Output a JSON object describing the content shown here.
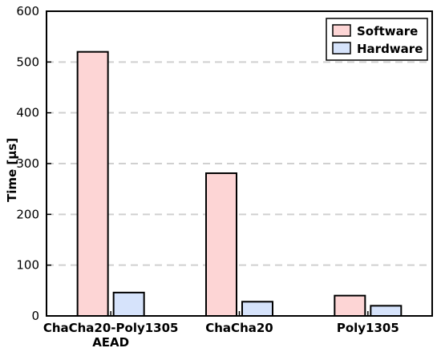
{
  "chart_data": {
    "type": "bar",
    "title": "",
    "xlabel": "",
    "ylabel": "Time [μs]",
    "ylim": [
      0,
      600
    ],
    "yticks": [
      0,
      100,
      200,
      300,
      400,
      500,
      600
    ],
    "grid": "horizontal dashed",
    "legend_position": "top-right",
    "categories": [
      [
        "ChaCha20-Poly1305",
        "AEAD"
      ],
      [
        "ChaCha20"
      ],
      [
        "Poly1305"
      ]
    ],
    "series": [
      {
        "name": "Software",
        "color": "#fdd5d5",
        "values": [
          520,
          281,
          40
        ]
      },
      {
        "name": "Hardware",
        "color": "#d6e3fb",
        "values": [
          46,
          28,
          20
        ]
      }
    ]
  }
}
